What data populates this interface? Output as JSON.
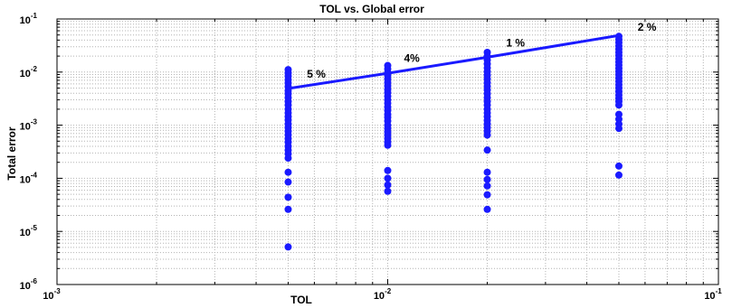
{
  "colors": {
    "series": "#1a1aff",
    "line": "#1a1aff",
    "grid": "#b4b4b4",
    "axis": "#000000"
  },
  "chart_data": {
    "type": "scatter",
    "title": "TOL vs. Global error",
    "xlabel": "TOL",
    "ylabel": "Total error",
    "xscale": "log",
    "yscale": "log",
    "xlim": [
      0.001,
      0.1
    ],
    "ylim": [
      1e-06,
      0.1
    ],
    "grid": true,
    "x_ticks": [
      {
        "base": "10",
        "exp": "-3"
      },
      {
        "base": "10",
        "exp": "-2"
      },
      {
        "base": "10",
        "exp": "-1"
      }
    ],
    "y_ticks": [
      {
        "base": "10",
        "exp": "-6"
      },
      {
        "base": "10",
        "exp": "-5"
      },
      {
        "base": "10",
        "exp": "-4"
      },
      {
        "base": "10",
        "exp": "-3"
      },
      {
        "base": "10",
        "exp": "-2"
      },
      {
        "base": "10",
        "exp": "-1"
      }
    ],
    "points": [
      {
        "x": 0.005,
        "y": 0.0111
      },
      {
        "x": 0.005,
        "y": 0.0096
      },
      {
        "x": 0.005,
        "y": 0.0084
      },
      {
        "x": 0.005,
        "y": 0.0072
      },
      {
        "x": 0.005,
        "y": 0.0062
      },
      {
        "x": 0.005,
        "y": 0.0053
      },
      {
        "x": 0.005,
        "y": 0.0045
      },
      {
        "x": 0.005,
        "y": 0.0039
      },
      {
        "x": 0.005,
        "y": 0.0033
      },
      {
        "x": 0.005,
        "y": 0.0028
      },
      {
        "x": 0.005,
        "y": 0.0024
      },
      {
        "x": 0.005,
        "y": 0.002
      },
      {
        "x": 0.005,
        "y": 0.0017
      },
      {
        "x": 0.005,
        "y": 0.00145
      },
      {
        "x": 0.005,
        "y": 0.00125
      },
      {
        "x": 0.005,
        "y": 0.00105
      },
      {
        "x": 0.005,
        "y": 0.0009
      },
      {
        "x": 0.005,
        "y": 0.00077
      },
      {
        "x": 0.005,
        "y": 0.00066
      },
      {
        "x": 0.005,
        "y": 0.00056
      },
      {
        "x": 0.005,
        "y": 0.00048
      },
      {
        "x": 0.005,
        "y": 0.0004
      },
      {
        "x": 0.005,
        "y": 0.00034
      },
      {
        "x": 0.005,
        "y": 0.00029
      },
      {
        "x": 0.005,
        "y": 0.00024
      },
      {
        "x": 0.005,
        "y": 0.00013
      },
      {
        "x": 0.005,
        "y": 8.5e-05
      },
      {
        "x": 0.005,
        "y": 4.4e-05
      },
      {
        "x": 0.005,
        "y": 2.6e-05
      },
      {
        "x": 0.005,
        "y": 5.1e-06
      },
      {
        "x": 0.01,
        "y": 0.0133
      },
      {
        "x": 0.01,
        "y": 0.0115
      },
      {
        "x": 0.01,
        "y": 0.0099
      },
      {
        "x": 0.01,
        "y": 0.0086
      },
      {
        "x": 0.01,
        "y": 0.0074
      },
      {
        "x": 0.01,
        "y": 0.0064
      },
      {
        "x": 0.01,
        "y": 0.0055
      },
      {
        "x": 0.01,
        "y": 0.0047
      },
      {
        "x": 0.01,
        "y": 0.0041
      },
      {
        "x": 0.01,
        "y": 0.0035
      },
      {
        "x": 0.01,
        "y": 0.003
      },
      {
        "x": 0.01,
        "y": 0.0026
      },
      {
        "x": 0.01,
        "y": 0.0022
      },
      {
        "x": 0.01,
        "y": 0.0019
      },
      {
        "x": 0.01,
        "y": 0.0016
      },
      {
        "x": 0.01,
        "y": 0.0014
      },
      {
        "x": 0.01,
        "y": 0.0012
      },
      {
        "x": 0.01,
        "y": 0.001
      },
      {
        "x": 0.01,
        "y": 0.00087
      },
      {
        "x": 0.01,
        "y": 0.00075
      },
      {
        "x": 0.01,
        "y": 0.00065
      },
      {
        "x": 0.01,
        "y": 0.00056
      },
      {
        "x": 0.01,
        "y": 0.00048
      },
      {
        "x": 0.01,
        "y": 0.00042
      },
      {
        "x": 0.01,
        "y": 0.00014
      },
      {
        "x": 0.01,
        "y": 0.0001
      },
      {
        "x": 0.01,
        "y": 7.5e-05
      },
      {
        "x": 0.01,
        "y": 5.7e-05
      },
      {
        "x": 0.02,
        "y": 0.0235
      },
      {
        "x": 0.02,
        "y": 0.0198
      },
      {
        "x": 0.02,
        "y": 0.0168
      },
      {
        "x": 0.02,
        "y": 0.0142
      },
      {
        "x": 0.02,
        "y": 0.012
      },
      {
        "x": 0.02,
        "y": 0.0102
      },
      {
        "x": 0.02,
        "y": 0.0087
      },
      {
        "x": 0.02,
        "y": 0.0074
      },
      {
        "x": 0.02,
        "y": 0.0063
      },
      {
        "x": 0.02,
        "y": 0.0054
      },
      {
        "x": 0.02,
        "y": 0.0046
      },
      {
        "x": 0.02,
        "y": 0.0039
      },
      {
        "x": 0.02,
        "y": 0.0033
      },
      {
        "x": 0.02,
        "y": 0.0028
      },
      {
        "x": 0.02,
        "y": 0.0024
      },
      {
        "x": 0.02,
        "y": 0.002
      },
      {
        "x": 0.02,
        "y": 0.0017
      },
      {
        "x": 0.02,
        "y": 0.00145
      },
      {
        "x": 0.02,
        "y": 0.00123
      },
      {
        "x": 0.02,
        "y": 0.00105
      },
      {
        "x": 0.02,
        "y": 0.0009
      },
      {
        "x": 0.02,
        "y": 0.00077
      },
      {
        "x": 0.02,
        "y": 0.00065
      },
      {
        "x": 0.02,
        "y": 0.00034
      },
      {
        "x": 0.02,
        "y": 0.00013
      },
      {
        "x": 0.02,
        "y": 9.5e-05
      },
      {
        "x": 0.02,
        "y": 7.2e-05
      },
      {
        "x": 0.02,
        "y": 4.9e-05
      },
      {
        "x": 0.02,
        "y": 2.6e-05
      },
      {
        "x": 0.05,
        "y": 0.047
      },
      {
        "x": 0.05,
        "y": 0.041
      },
      {
        "x": 0.05,
        "y": 0.036
      },
      {
        "x": 0.05,
        "y": 0.031
      },
      {
        "x": 0.05,
        "y": 0.027
      },
      {
        "x": 0.05,
        "y": 0.0235
      },
      {
        "x": 0.05,
        "y": 0.0205
      },
      {
        "x": 0.05,
        "y": 0.0178
      },
      {
        "x": 0.05,
        "y": 0.0155
      },
      {
        "x": 0.05,
        "y": 0.0135
      },
      {
        "x": 0.05,
        "y": 0.0117
      },
      {
        "x": 0.05,
        "y": 0.0102
      },
      {
        "x": 0.05,
        "y": 0.0089
      },
      {
        "x": 0.05,
        "y": 0.0077
      },
      {
        "x": 0.05,
        "y": 0.0067
      },
      {
        "x": 0.05,
        "y": 0.0058
      },
      {
        "x": 0.05,
        "y": 0.005
      },
      {
        "x": 0.05,
        "y": 0.0043
      },
      {
        "x": 0.05,
        "y": 0.0037
      },
      {
        "x": 0.05,
        "y": 0.0032
      },
      {
        "x": 0.05,
        "y": 0.0028
      },
      {
        "x": 0.05,
        "y": 0.0024
      },
      {
        "x": 0.05,
        "y": 0.0016
      },
      {
        "x": 0.05,
        "y": 0.0013
      },
      {
        "x": 0.05,
        "y": 0.00105
      },
      {
        "x": 0.05,
        "y": 0.00087
      },
      {
        "x": 0.05,
        "y": 0.00017
      },
      {
        "x": 0.05,
        "y": 0.000115
      }
    ],
    "line": {
      "x": [
        0.005,
        0.01,
        0.02,
        0.05
      ],
      "y": [
        0.0049,
        0.0095,
        0.019,
        0.049
      ]
    },
    "annotations": [
      {
        "text": "5 %",
        "x": 0.0057,
        "y": 0.0078
      },
      {
        "text": "4%",
        "x": 0.0112,
        "y": 0.0155
      },
      {
        "text": "1 %",
        "x": 0.0228,
        "y": 0.03
      },
      {
        "text": "2 %",
        "x": 0.057,
        "y": 0.06
      }
    ]
  }
}
